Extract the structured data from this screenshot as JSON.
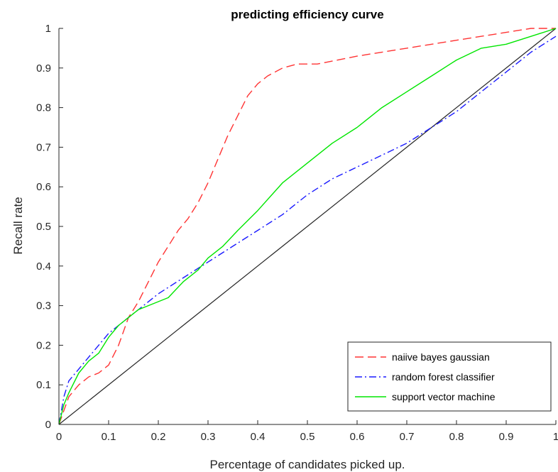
{
  "chart_data": {
    "type": "line",
    "title": "predicting efficiency curve",
    "xlabel": "Percentage of candidates picked up.",
    "ylabel": "Recall rate",
    "xlim": [
      0,
      1
    ],
    "ylim": [
      0,
      1
    ],
    "xticks": [
      "0",
      "0.1",
      "0.2",
      "0.3",
      "0.4",
      "0.5",
      "0.6",
      "0.7",
      "0.8",
      "0.9",
      "1"
    ],
    "yticks": [
      "0",
      "0.1",
      "0.2",
      "0.3",
      "0.4",
      "0.5",
      "0.6",
      "0.7",
      "0.8",
      "0.9",
      "1"
    ],
    "grid": false,
    "legend_position": "bottom-right",
    "reference_line": {
      "x": [
        0,
        1
      ],
      "y": [
        0,
        1
      ],
      "color": "#262626"
    },
    "series": [
      {
        "name": "naiive bayes gaussian",
        "color": "#ff3333",
        "dash": "dashed",
        "x": [
          0,
          0.02,
          0.04,
          0.06,
          0.08,
          0.1,
          0.12,
          0.14,
          0.16,
          0.18,
          0.2,
          0.22,
          0.24,
          0.26,
          0.28,
          0.3,
          0.32,
          0.34,
          0.36,
          0.38,
          0.4,
          0.42,
          0.45,
          0.48,
          0.52,
          0.6,
          0.7,
          0.8,
          0.9,
          0.95,
          1.0
        ],
        "y": [
          0,
          0.07,
          0.1,
          0.12,
          0.13,
          0.15,
          0.2,
          0.27,
          0.31,
          0.36,
          0.41,
          0.45,
          0.49,
          0.52,
          0.56,
          0.61,
          0.67,
          0.73,
          0.78,
          0.83,
          0.86,
          0.88,
          0.9,
          0.91,
          0.91,
          0.93,
          0.95,
          0.97,
          0.99,
          1.0,
          1.0
        ]
      },
      {
        "name": "random forest classifier",
        "color": "#1a1aff",
        "dash": "dashdot",
        "x": [
          0,
          0.01,
          0.02,
          0.04,
          0.06,
          0.08,
          0.1,
          0.12,
          0.15,
          0.2,
          0.25,
          0.3,
          0.35,
          0.4,
          0.45,
          0.5,
          0.55,
          0.6,
          0.65,
          0.7,
          0.75,
          0.8,
          0.85,
          0.9,
          0.95,
          1.0
        ],
        "y": [
          0,
          0.07,
          0.11,
          0.14,
          0.17,
          0.2,
          0.23,
          0.25,
          0.28,
          0.33,
          0.37,
          0.41,
          0.45,
          0.49,
          0.53,
          0.58,
          0.62,
          0.65,
          0.68,
          0.71,
          0.75,
          0.79,
          0.84,
          0.89,
          0.94,
          0.98
        ]
      },
      {
        "name": "support vector machine",
        "color": "#00e600",
        "dash": "solid",
        "x": [
          0,
          0.01,
          0.02,
          0.04,
          0.06,
          0.08,
          0.1,
          0.12,
          0.14,
          0.16,
          0.18,
          0.2,
          0.22,
          0.25,
          0.28,
          0.3,
          0.33,
          0.36,
          0.4,
          0.45,
          0.5,
          0.55,
          0.6,
          0.62,
          0.65,
          0.7,
          0.75,
          0.8,
          0.85,
          0.9,
          0.95,
          1.0
        ],
        "y": [
          0,
          0.05,
          0.08,
          0.13,
          0.16,
          0.18,
          0.22,
          0.25,
          0.27,
          0.29,
          0.3,
          0.31,
          0.32,
          0.36,
          0.39,
          0.42,
          0.45,
          0.49,
          0.54,
          0.61,
          0.66,
          0.71,
          0.75,
          0.77,
          0.8,
          0.84,
          0.88,
          0.92,
          0.95,
          0.96,
          0.98,
          1.0
        ]
      }
    ]
  }
}
